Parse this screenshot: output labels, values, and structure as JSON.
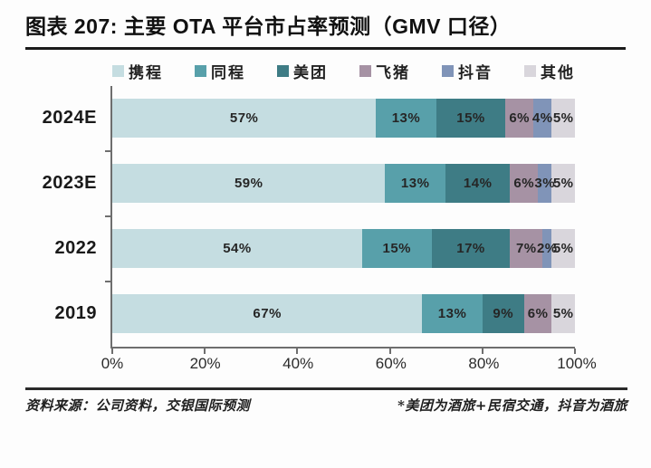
{
  "title": "图表 207: 主要 OTA 平台市占率预测（GMV 口径）",
  "legend": [
    {
      "label": "携程",
      "color": "#c5dde1"
    },
    {
      "label": "同程",
      "color": "#58a0aa"
    },
    {
      "label": "美团",
      "color": "#3e7c85"
    },
    {
      "label": "飞猪",
      "color": "#a692a4"
    },
    {
      "label": "抖音",
      "color": "#8094b8"
    },
    {
      "label": "其他",
      "color": "#d9d6dc"
    }
  ],
  "chart_data": {
    "type": "bar",
    "orientation": "horizontal",
    "stacked": true,
    "title": "主要 OTA 平台市占率预测（GMV 口径）",
    "categories": [
      "2024E",
      "2023E",
      "2022",
      "2019"
    ],
    "series": [
      {
        "name": "携程",
        "color": "#c5dde1",
        "values": [
          57,
          59,
          54,
          67
        ]
      },
      {
        "name": "同程",
        "color": "#58a0aa",
        "values": [
          13,
          13,
          15,
          13
        ]
      },
      {
        "name": "美团",
        "color": "#3e7c85",
        "values": [
          15,
          14,
          17,
          9
        ]
      },
      {
        "name": "飞猪",
        "color": "#a692a4",
        "values": [
          6,
          6,
          7,
          6
        ]
      },
      {
        "name": "抖音",
        "color": "#8094b8",
        "values": [
          4,
          3,
          2,
          0
        ]
      },
      {
        "name": "其他",
        "color": "#d9d6dc",
        "values": [
          5,
          5,
          5,
          5
        ]
      }
    ],
    "value_suffix": "%",
    "x_ticks": [
      "0%",
      "20%",
      "40%",
      "60%",
      "80%",
      "100%"
    ],
    "xlim": [
      0,
      100
    ],
    "grid": false,
    "legend_position": "top",
    "axis_color": "#6e6e6e"
  },
  "footer": {
    "source": "资料来源：公司资料，交银国际预测",
    "note": "*美团为酒旅+民宿交通，抖音为酒旅"
  }
}
